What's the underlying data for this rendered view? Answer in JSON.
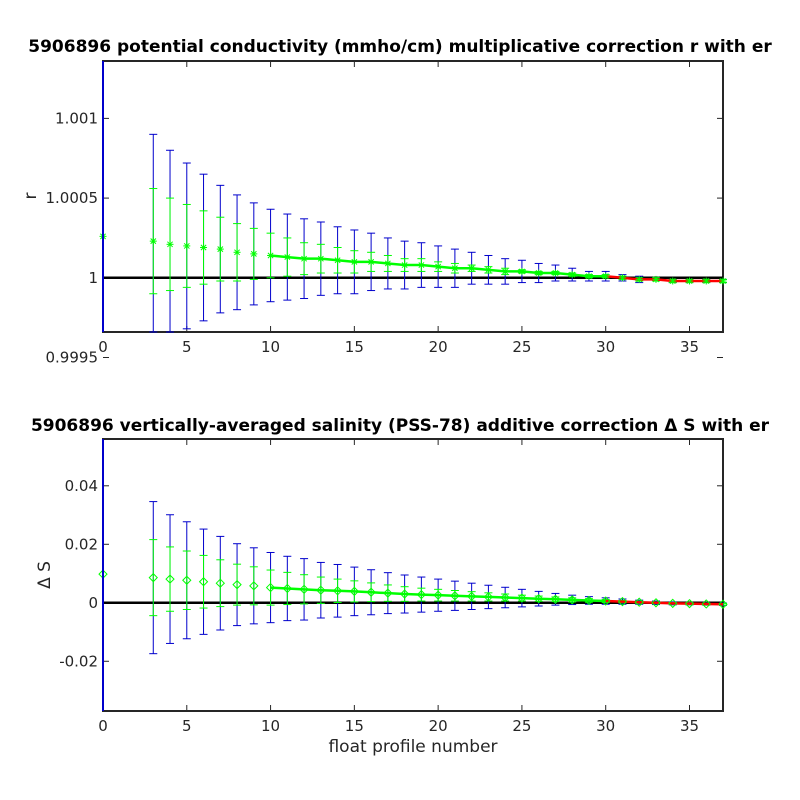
{
  "colors": {
    "error_outer": "#0000cc",
    "error_inner": "#00ff00",
    "markers": "#00ff00",
    "fit_line": "#00ff00",
    "fit_line_late": "#ff0000",
    "reference_line": "#000000",
    "axes": "#262626"
  },
  "chart_data": [
    {
      "type": "scatter",
      "title": "5906896 potential conductivity (mmho/cm) multiplicative correction r with er",
      "xlabel": "",
      "ylabel": "r",
      "xlim": [
        0,
        37
      ],
      "ylim": [
        0.99966,
        1.00136
      ],
      "xticks": [
        0,
        5,
        10,
        15,
        20,
        25,
        30,
        35
      ],
      "xtick_labels": [
        "0",
        "5",
        "10",
        "15",
        "20",
        "25",
        "30",
        "35"
      ],
      "yticks": [
        0.9995,
        1.0,
        1.0005,
        1.001
      ],
      "ytick_labels": [
        "0.9995",
        "1",
        "1.0005",
        "1.001"
      ],
      "grid": false,
      "marker": "asterisk",
      "reference_line": 1.0,
      "x": [
        0,
        3,
        4,
        5,
        6,
        7,
        8,
        9,
        10,
        11,
        12,
        13,
        14,
        15,
        16,
        17,
        18,
        19,
        20,
        21,
        22,
        23,
        24,
        25,
        26,
        27,
        28,
        29,
        30,
        31,
        32,
        33,
        34,
        35,
        36,
        37
      ],
      "y": [
        1.00026,
        1.00023,
        1.00021,
        1.0002,
        1.00019,
        1.00018,
        1.00016,
        1.00015,
        1.00014,
        1.00013,
        1.00012,
        1.00012,
        1.00011,
        1.0001,
        1.0001,
        1.00009,
        1.00008,
        1.00008,
        1.00007,
        1.00006,
        1.00006,
        1.00005,
        1.00004,
        1.00004,
        1.00003,
        1.00003,
        1.00002,
        1.00001,
        1.00001,
        1.0,
        0.99999,
        0.99999,
        0.99998,
        0.99998,
        0.99998,
        0.99998
      ],
      "err_outer": [
        0.00093,
        0.00067,
        0.00059,
        0.00052,
        0.00046,
        0.0004,
        0.00036,
        0.00032,
        0.00029,
        0.00027,
        0.00025,
        0.00023,
        0.00021,
        0.0002,
        0.00018,
        0.00016,
        0.00015,
        0.00014,
        0.00013,
        0.00012,
        0.0001,
        9e-05,
        8e-05,
        7e-05,
        6e-05,
        5e-05,
        4e-05,
        3e-05,
        3e-05,
        2e-05,
        2e-05,
        1e-05,
        1e-05,
        1e-05,
        1e-05,
        1e-05
      ],
      "err_inner": [
        0.00067,
        0.00033,
        0.00029,
        0.00026,
        0.00023,
        0.0002,
        0.00018,
        0.00016,
        0.00014,
        0.00012,
        0.0001,
        9e-05,
        8e-05,
        7e-05,
        6e-05,
        5e-05,
        4e-05,
        4e-05,
        3e-05,
        3e-05,
        2e-05,
        2e-05,
        2e-05,
        1e-05,
        1e-05,
        1e-05,
        1e-05,
        1e-05,
        1e-05,
        1e-05,
        1e-05,
        1e-05,
        1e-05,
        1e-05,
        1e-05,
        1e-05
      ],
      "fit_start": 10,
      "red_start": 30
    },
    {
      "type": "scatter",
      "title": "5906896 vertically-averaged salinity (PSS-78) additive correction Δ S with er",
      "xlabel": "float profile number",
      "ylabel": "Δ S",
      "xlim": [
        0,
        37
      ],
      "ylim": [
        -0.037,
        0.056
      ],
      "xticks": [
        0,
        5,
        10,
        15,
        20,
        25,
        30,
        35
      ],
      "xtick_labels": [
        "0",
        "5",
        "10",
        "15",
        "20",
        "25",
        "30",
        "35"
      ],
      "yticks": [
        -0.02,
        0,
        0.02,
        0.04
      ],
      "ytick_labels": [
        "-0.02",
        "0",
        "0.02",
        "0.04"
      ],
      "grid": false,
      "marker": "diamond",
      "reference_line": 0,
      "x": [
        0,
        3,
        4,
        5,
        6,
        7,
        8,
        9,
        10,
        11,
        12,
        13,
        14,
        15,
        16,
        17,
        18,
        19,
        20,
        21,
        22,
        23,
        24,
        25,
        26,
        27,
        28,
        29,
        30,
        31,
        32,
        33,
        34,
        35,
        36,
        37
      ],
      "y": [
        0.0098,
        0.0086,
        0.0081,
        0.0077,
        0.0072,
        0.0067,
        0.0062,
        0.0058,
        0.0052,
        0.0049,
        0.0046,
        0.0043,
        0.0041,
        0.0039,
        0.0036,
        0.0033,
        0.003,
        0.0028,
        0.0026,
        0.0024,
        0.0022,
        0.002,
        0.0018,
        0.0016,
        0.0014,
        0.0012,
        0.001,
        0.0008,
        0.0006,
        0.0004,
        0.0002,
        0.0,
        -0.0002,
        -0.0003,
        -0.0004,
        -0.0005
      ],
      "err_outer": [
        0.035,
        0.026,
        0.022,
        0.02,
        0.018,
        0.016,
        0.014,
        0.013,
        0.012,
        0.011,
        0.0105,
        0.0095,
        0.009,
        0.0083,
        0.0077,
        0.007,
        0.0065,
        0.006,
        0.0055,
        0.005,
        0.0045,
        0.004,
        0.0035,
        0.003,
        0.0025,
        0.002,
        0.0016,
        0.0013,
        0.0011,
        0.0009,
        0.0007,
        0.0006,
        0.0005,
        0.0004,
        0.0004,
        0.0004
      ],
      "err_inner": [
        0.027,
        0.013,
        0.011,
        0.01,
        0.009,
        0.008,
        0.007,
        0.0065,
        0.006,
        0.0055,
        0.005,
        0.0045,
        0.004,
        0.0036,
        0.0032,
        0.0028,
        0.0025,
        0.0022,
        0.002,
        0.0018,
        0.0016,
        0.0014,
        0.0012,
        0.001,
        0.0009,
        0.0008,
        0.0007,
        0.0006,
        0.0005,
        0.0004,
        0.0004,
        0.0003,
        0.0003,
        0.0003,
        0.0003,
        0.0003
      ],
      "fit_start": 10,
      "red_start": 30
    }
  ]
}
